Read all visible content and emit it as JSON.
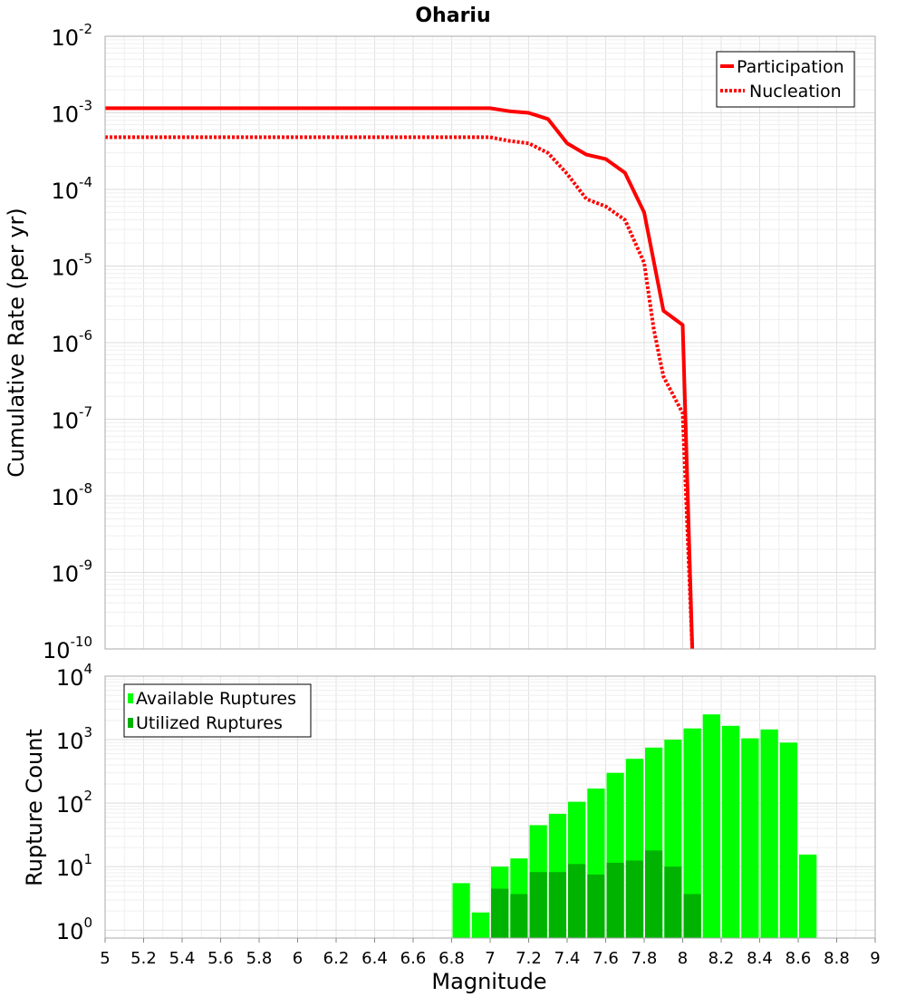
{
  "chart_data": [
    {
      "type": "line",
      "title": "Ohariu",
      "ylabel": "Cumulative Rate (per yr)",
      "xlabel": "",
      "xlim": [
        5,
        9
      ],
      "ylim": [
        1e-10,
        0.01
      ],
      "yscale": "log",
      "ytick_exponents": [
        "-2",
        "-3",
        "-4",
        "-5",
        "-6",
        "-7",
        "-8",
        "-9",
        "-10"
      ],
      "ytick_base": "10",
      "legend": {
        "position": "top-right",
        "entries": [
          "Participation",
          "Nucleation"
        ]
      },
      "series": [
        {
          "name": "Participation",
          "style": "solid",
          "color": "#ff0000",
          "x": [
            5.0,
            7.0,
            7.1,
            7.2,
            7.3,
            7.4,
            7.5,
            7.6,
            7.7,
            7.8,
            7.9,
            8.0,
            8.05
          ],
          "y": [
            0.00115,
            0.00115,
            0.00105,
            0.001,
            0.00083,
            0.0004,
            0.000285,
            0.00025,
            0.000165,
            5e-05,
            2.6e-06,
            1.7e-06,
            1e-10
          ]
        },
        {
          "name": "Nucleation",
          "style": "dotted",
          "color": "#ff0000",
          "x": [
            5.0,
            7.0,
            7.1,
            7.2,
            7.3,
            7.4,
            7.5,
            7.6,
            7.7,
            7.8,
            7.85,
            7.9,
            8.0,
            8.05
          ],
          "y": [
            0.00048,
            0.00048,
            0.00043,
            0.0004,
            0.0003,
            0.00016,
            7.5e-05,
            6e-05,
            4e-05,
            1.1e-05,
            1.5e-06,
            3.6e-07,
            1.2e-07,
            1e-10
          ]
        }
      ]
    },
    {
      "type": "bar",
      "title": "",
      "ylabel": "Rupture Count",
      "xlabel": "Magnitude",
      "xlim": [
        5,
        9
      ],
      "ylim": [
        0.75,
        10000
      ],
      "yscale": "log",
      "ytick_exponents": [
        "4",
        "3",
        "2",
        "1",
        "0"
      ],
      "ytick_base": "10",
      "x_tick_labels": [
        "5",
        "5.2",
        "5.4",
        "5.6",
        "5.8",
        "6",
        "6.2",
        "6.4",
        "6.6",
        "6.8",
        "7",
        "7.2",
        "7.4",
        "7.6",
        "7.8",
        "8",
        "8.2",
        "8.4",
        "8.6",
        "8.8",
        "9"
      ],
      "bar_width": 0.1,
      "legend": {
        "position": "top-left",
        "entries": [
          "Available Ruptures",
          "Utilized Ruptures"
        ]
      },
      "categories": [
        6.85,
        6.95,
        7.05,
        7.15,
        7.25,
        7.35,
        7.45,
        7.55,
        7.65,
        7.75,
        7.85,
        7.95,
        8.05,
        8.15,
        8.25,
        8.35,
        8.45,
        8.55,
        8.65
      ],
      "series": [
        {
          "name": "Available Ruptures",
          "color": "#00ff00",
          "values": [
            5.5,
            1.9,
            10,
            13.5,
            45,
            68,
            105,
            170,
            300,
            500,
            750,
            1000,
            1500,
            2500,
            1650,
            1050,
            1450,
            900,
            15.5
          ]
        },
        {
          "name": "Utilized Ruptures",
          "color": "#00b300",
          "values": [
            null,
            null,
            4.5,
            3.7,
            8.2,
            8.2,
            11,
            7.5,
            11.5,
            12.5,
            18,
            10,
            3.7,
            null,
            null,
            null,
            null,
            null,
            null
          ]
        }
      ]
    }
  ]
}
